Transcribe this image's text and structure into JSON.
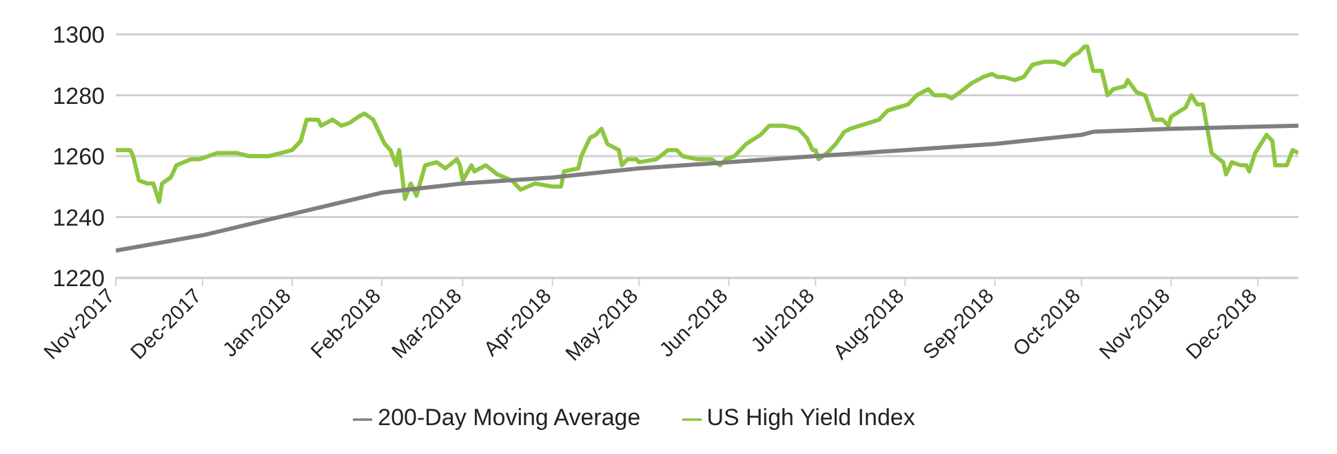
{
  "chart_data": {
    "type": "line",
    "legend": "bottom",
    "grid": "y",
    "line_style": "solid",
    "marker": "none",
    "xlim": [
      "2017-11-01",
      "2018-12-15"
    ],
    "xticks": [
      {
        "value": "2017-11-01",
        "label": "Nov-2017"
      },
      {
        "value": "2017-12-01",
        "label": "Dec-2017"
      },
      {
        "value": "2018-01-01",
        "label": "Jan-2018"
      },
      {
        "value": "2018-02-01",
        "label": "Feb-2018"
      },
      {
        "value": "2018-03-01",
        "label": "Mar-2018"
      },
      {
        "value": "2018-04-01",
        "label": "Apr-2018"
      },
      {
        "value": "2018-05-01",
        "label": "May-2018"
      },
      {
        "value": "2018-06-01",
        "label": "Jun-2018"
      },
      {
        "value": "2018-07-01",
        "label": "Jul-2018"
      },
      {
        "value": "2018-08-01",
        "label": "Aug-2018"
      },
      {
        "value": "2018-09-01",
        "label": "Sep-2018"
      },
      {
        "value": "2018-10-01",
        "label": "Oct-2018"
      },
      {
        "value": "2018-11-01",
        "label": "Nov-2018"
      },
      {
        "value": "2018-12-01",
        "label": "Dec-2018"
      }
    ],
    "ylim": [
      1220,
      1300
    ],
    "yticks": [
      1220,
      1240,
      1260,
      1280,
      1300
    ],
    "series": [
      {
        "name": "US High Yield Index",
        "color": "#8dc63f",
        "x": [
          "2017-11-01",
          "2017-11-06",
          "2017-11-07",
          "2017-11-09",
          "2017-11-12",
          "2017-11-14",
          "2017-11-16",
          "2017-11-17",
          "2017-11-20",
          "2017-11-22",
          "2017-11-27",
          "2017-11-30",
          "2017-12-03",
          "2017-12-06",
          "2017-12-13",
          "2017-12-17",
          "2017-12-24",
          "2017-12-28",
          "2018-01-01",
          "2018-01-04",
          "2018-01-06",
          "2018-01-10",
          "2018-01-11",
          "2018-01-15",
          "2018-01-18",
          "2018-01-21",
          "2018-01-24",
          "2018-01-26",
          "2018-01-29",
          "2018-01-31",
          "2018-02-02",
          "2018-02-04",
          "2018-02-06",
          "2018-02-07",
          "2018-02-09",
          "2018-02-11",
          "2018-02-13",
          "2018-02-16",
          "2018-02-20",
          "2018-02-23",
          "2018-02-27",
          "2018-02-28",
          "2018-03-01",
          "2018-03-04",
          "2018-03-05",
          "2018-03-09",
          "2018-03-13",
          "2018-03-18",
          "2018-03-21",
          "2018-03-26",
          "2018-04-01",
          "2018-04-04",
          "2018-04-05",
          "2018-04-10",
          "2018-04-11",
          "2018-04-14",
          "2018-04-16",
          "2018-04-18",
          "2018-04-20",
          "2018-04-24",
          "2018-04-25",
          "2018-04-27",
          "2018-04-30",
          "2018-05-01",
          "2018-05-07",
          "2018-05-11",
          "2018-05-14",
          "2018-05-16",
          "2018-05-21",
          "2018-05-26",
          "2018-05-29",
          "2018-05-31",
          "2018-06-03",
          "2018-06-07",
          "2018-06-12",
          "2018-06-15",
          "2018-06-20",
          "2018-06-25",
          "2018-06-28",
          "2018-06-30",
          "2018-07-01",
          "2018-07-02",
          "2018-07-05",
          "2018-07-08",
          "2018-07-11",
          "2018-07-13",
          "2018-07-23",
          "2018-07-26",
          "2018-08-02",
          "2018-08-05",
          "2018-08-09",
          "2018-08-11",
          "2018-08-15",
          "2018-08-17",
          "2018-08-20",
          "2018-08-24",
          "2018-08-28",
          "2018-08-31",
          "2018-09-02",
          "2018-09-04",
          "2018-09-08",
          "2018-09-11",
          "2018-09-14",
          "2018-09-18",
          "2018-09-22",
          "2018-09-25",
          "2018-09-28",
          "2018-09-30",
          "2018-10-02",
          "2018-10-03",
          "2018-10-05",
          "2018-10-08",
          "2018-10-10",
          "2018-10-12",
          "2018-10-16",
          "2018-10-17",
          "2018-10-20",
          "2018-10-23",
          "2018-10-26",
          "2018-10-29",
          "2018-10-31",
          "2018-11-01",
          "2018-11-06",
          "2018-11-08",
          "2018-11-10",
          "2018-11-12",
          "2018-11-15",
          "2018-11-19",
          "2018-11-20",
          "2018-11-22",
          "2018-11-25",
          "2018-11-27",
          "2018-11-28",
          "2018-11-30",
          "2018-12-04",
          "2018-12-06",
          "2018-12-07",
          "2018-12-11",
          "2018-12-13",
          "2018-12-15"
        ],
        "values": [
          1262,
          1262,
          1260,
          1252,
          1251,
          1251,
          1245,
          1251,
          1253,
          1257,
          1259,
          1259,
          1260,
          1261,
          1261,
          1260,
          1260,
          1261,
          1262,
          1265,
          1272,
          1272,
          1270,
          1272,
          1270,
          1271,
          1273,
          1274,
          1272,
          1268,
          1264,
          1262,
          1257,
          1262,
          1246,
          1251,
          1247,
          1257,
          1258,
          1256,
          1259,
          1257,
          1252,
          1257,
          1255,
          1257,
          1254,
          1252,
          1249,
          1251,
          1250,
          1250,
          1255,
          1256,
          1260,
          1266,
          1267,
          1269,
          1264,
          1262,
          1257,
          1259,
          1259,
          1258,
          1259,
          1262,
          1262,
          1260,
          1259,
          1259,
          1257,
          1259,
          1260,
          1264,
          1267,
          1270,
          1270,
          1269,
          1266,
          1262,
          1262,
          1259,
          1261,
          1264,
          1268,
          1269,
          1272,
          1275,
          1277,
          1280,
          1282,
          1280,
          1280,
          1279,
          1281,
          1284,
          1286,
          1287,
          1286,
          1286,
          1285,
          1286,
          1290,
          1291,
          1291,
          1290,
          1293,
          1294,
          1296,
          1296,
          1288,
          1288,
          1280,
          1282,
          1283,
          1285,
          1281,
          1280,
          1272,
          1272,
          1270,
          1273,
          1276,
          1280,
          1277,
          1277,
          1261,
          1258,
          1254,
          1258,
          1257,
          1257,
          1255,
          1261,
          1267,
          1265,
          1257,
          1257,
          1262,
          1261
        ]
      },
      {
        "name": "200-Day Moving Average",
        "color": "#7f7f7f",
        "x": [
          "2017-11-01",
          "2017-12-01",
          "2018-01-01",
          "2018-02-01",
          "2018-03-01",
          "2018-04-01",
          "2018-05-01",
          "2018-06-01",
          "2018-07-01",
          "2018-08-01",
          "2018-09-01",
          "2018-10-01",
          "2018-10-05",
          "2018-11-01",
          "2018-12-15"
        ],
        "values": [
          1229,
          1234,
          1241,
          1248,
          1251,
          1253,
          1256,
          1258,
          1260,
          1262,
          1264,
          1267,
          1268,
          1269,
          1270
        ]
      }
    ]
  }
}
